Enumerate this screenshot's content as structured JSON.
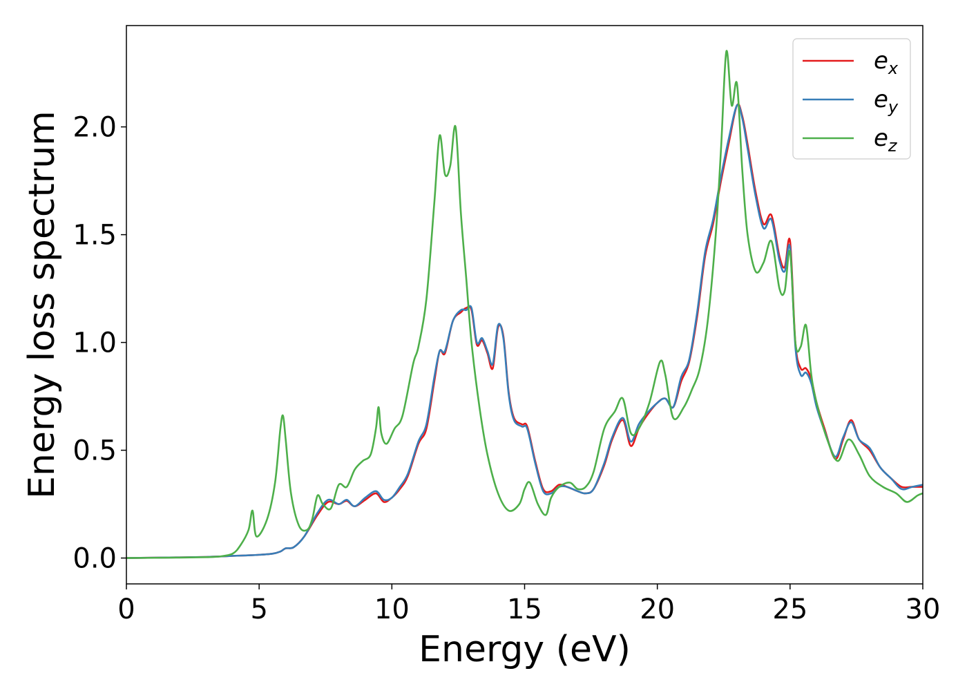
{
  "chart_data": {
    "type": "line",
    "xlabel": "Energy (eV)",
    "ylabel": "Energy loss spectrum",
    "xlim": [
      0,
      30
    ],
    "ylim": [
      -0.12,
      2.47
    ],
    "xticks": [
      "0",
      "5",
      "10",
      "15",
      "20",
      "25",
      "30"
    ],
    "yticks": [
      "0.0",
      "0.5",
      "1.0",
      "1.5",
      "2.0"
    ],
    "grid": false,
    "legend_position": "top-right",
    "series": [
      {
        "name": "e",
        "subscript": "x",
        "color": "#e41a1c",
        "x": [
          0,
          2,
          3,
          3.5,
          4,
          4.5,
          5,
          5.5,
          5.8,
          6,
          6.3,
          6.7,
          7.2,
          7.6,
          8,
          8.3,
          8.6,
          9,
          9.4,
          9.7,
          10,
          10.3,
          10.6,
          11,
          11.3,
          11.6,
          11.8,
          12,
          12.3,
          12.6,
          12.8,
          13,
          13.2,
          13.4,
          13.6,
          13.8,
          14,
          14.2,
          14.4,
          14.6,
          14.9,
          15.1,
          15.4,
          15.7,
          16,
          16.3,
          16.6,
          17,
          17.3,
          17.6,
          18,
          18.3,
          18.7,
          19,
          19.3,
          19.6,
          20,
          20.3,
          20.6,
          20.9,
          21.2,
          21.5,
          21.8,
          22.1,
          22.4,
          22.7,
          23,
          23.2,
          23.4,
          23.7,
          24,
          24.3,
          24.6,
          24.8,
          25,
          25.2,
          25.4,
          25.6,
          25.8,
          26,
          26.3,
          26.7,
          27,
          27.3,
          27.6,
          28,
          28.4,
          28.8,
          29.2,
          29.6,
          30
        ],
        "y": [
          0,
          0.003,
          0.005,
          0.007,
          0.01,
          0.012,
          0.015,
          0.02,
          0.03,
          0.045,
          0.05,
          0.1,
          0.2,
          0.26,
          0.25,
          0.265,
          0.24,
          0.27,
          0.3,
          0.26,
          0.28,
          0.32,
          0.38,
          0.53,
          0.6,
          0.82,
          0.96,
          0.95,
          1.1,
          1.14,
          1.16,
          1.15,
          0.99,
          1.01,
          0.95,
          0.88,
          1.07,
          1.03,
          0.77,
          0.65,
          0.62,
          0.61,
          0.45,
          0.32,
          0.31,
          0.34,
          0.33,
          0.31,
          0.3,
          0.32,
          0.43,
          0.55,
          0.64,
          0.52,
          0.6,
          0.66,
          0.72,
          0.74,
          0.7,
          0.82,
          0.91,
          1.12,
          1.4,
          1.55,
          1.75,
          1.93,
          2.1,
          2.05,
          1.92,
          1.7,
          1.55,
          1.59,
          1.4,
          1.35,
          1.47,
          1.0,
          0.88,
          0.88,
          0.83,
          0.72,
          0.6,
          0.46,
          0.55,
          0.64,
          0.55,
          0.5,
          0.42,
          0.37,
          0.33,
          0.33,
          0.33
        ]
      },
      {
        "name": "e",
        "subscript": "y",
        "color": "#377eb8",
        "x": [
          0,
          2,
          3,
          3.5,
          4,
          4.5,
          5,
          5.5,
          5.8,
          6,
          6.3,
          6.7,
          7.2,
          7.6,
          8,
          8.3,
          8.6,
          9,
          9.4,
          9.7,
          10,
          10.3,
          10.6,
          11,
          11.3,
          11.6,
          11.8,
          12,
          12.3,
          12.6,
          12.8,
          13,
          13.2,
          13.4,
          13.6,
          13.8,
          14,
          14.2,
          14.4,
          14.6,
          14.9,
          15.1,
          15.4,
          15.7,
          16,
          16.3,
          16.6,
          17,
          17.3,
          17.6,
          18,
          18.3,
          18.7,
          19,
          19.3,
          19.6,
          20,
          20.3,
          20.6,
          20.9,
          21.2,
          21.5,
          21.8,
          22.1,
          22.4,
          22.7,
          23,
          23.2,
          23.4,
          23.7,
          24,
          24.3,
          24.6,
          24.8,
          25,
          25.2,
          25.4,
          25.6,
          25.8,
          26,
          26.3,
          26.7,
          27,
          27.3,
          27.6,
          28,
          28.4,
          28.8,
          29.2,
          29.6,
          30
        ],
        "y": [
          0,
          0.003,
          0.005,
          0.007,
          0.01,
          0.012,
          0.015,
          0.02,
          0.03,
          0.045,
          0.05,
          0.1,
          0.21,
          0.27,
          0.25,
          0.27,
          0.24,
          0.28,
          0.31,
          0.27,
          0.28,
          0.33,
          0.39,
          0.54,
          0.62,
          0.84,
          0.96,
          0.96,
          1.1,
          1.15,
          1.15,
          1.16,
          1.0,
          1.02,
          0.96,
          0.9,
          1.08,
          1.02,
          0.76,
          0.64,
          0.61,
          0.6,
          0.44,
          0.31,
          0.3,
          0.33,
          0.33,
          0.31,
          0.3,
          0.32,
          0.44,
          0.56,
          0.65,
          0.54,
          0.62,
          0.67,
          0.72,
          0.74,
          0.7,
          0.84,
          0.92,
          1.14,
          1.42,
          1.57,
          1.77,
          1.95,
          2.1,
          2.04,
          1.9,
          1.68,
          1.53,
          1.57,
          1.38,
          1.33,
          1.44,
          0.98,
          0.85,
          0.86,
          0.81,
          0.7,
          0.59,
          0.47,
          0.56,
          0.63,
          0.55,
          0.51,
          0.42,
          0.37,
          0.32,
          0.33,
          0.34
        ]
      },
      {
        "name": "e",
        "subscript": "z",
        "color": "#4daf4a",
        "x": [
          0,
          2,
          3,
          3.5,
          4,
          4.3,
          4.6,
          4.75,
          4.9,
          5.3,
          5.6,
          5.8,
          5.9,
          6.0,
          6.2,
          6.5,
          6.8,
          7.0,
          7.2,
          7.4,
          7.7,
          8.0,
          8.3,
          8.6,
          8.9,
          9.2,
          9.4,
          9.5,
          9.6,
          9.8,
          10.1,
          10.4,
          10.8,
          11.0,
          11.3,
          11.6,
          11.8,
          12.0,
          12.2,
          12.4,
          12.6,
          12.8,
          13.0,
          13.3,
          13.6,
          14.0,
          14.4,
          14.8,
          15.0,
          15.2,
          15.5,
          15.8,
          16.0,
          16.3,
          16.7,
          17.0,
          17.3,
          17.6,
          18.0,
          18.4,
          18.7,
          19.0,
          19.3,
          19.7,
          20.1,
          20.3,
          20.6,
          21.0,
          21.3,
          21.6,
          21.9,
          22.2,
          22.4,
          22.6,
          22.8,
          23.0,
          23.2,
          23.4,
          23.7,
          24.0,
          24.3,
          24.6,
          24.8,
          25.0,
          25.2,
          25.4,
          25.6,
          25.8,
          26.0,
          26.4,
          26.8,
          27.2,
          27.6,
          28.0,
          28.5,
          29.0,
          29.4,
          29.8,
          30
        ],
        "y": [
          0,
          0.002,
          0.004,
          0.007,
          0.02,
          0.06,
          0.13,
          0.22,
          0.1,
          0.18,
          0.35,
          0.6,
          0.66,
          0.55,
          0.3,
          0.15,
          0.13,
          0.18,
          0.29,
          0.25,
          0.23,
          0.34,
          0.33,
          0.41,
          0.45,
          0.48,
          0.6,
          0.7,
          0.58,
          0.53,
          0.6,
          0.66,
          0.9,
          0.98,
          1.2,
          1.65,
          1.96,
          1.78,
          1.82,
          2.0,
          1.6,
          1.3,
          1.0,
          0.7,
          0.48,
          0.3,
          0.22,
          0.25,
          0.32,
          0.35,
          0.25,
          0.2,
          0.28,
          0.33,
          0.35,
          0.32,
          0.33,
          0.4,
          0.6,
          0.68,
          0.74,
          0.58,
          0.6,
          0.72,
          0.91,
          0.85,
          0.65,
          0.7,
          0.78,
          0.88,
          1.1,
          1.5,
          1.9,
          2.35,
          2.1,
          2.2,
          1.8,
          1.5,
          1.33,
          1.37,
          1.47,
          1.25,
          1.24,
          1.42,
          1.0,
          0.98,
          1.08,
          0.85,
          0.72,
          0.55,
          0.45,
          0.55,
          0.48,
          0.38,
          0.33,
          0.3,
          0.26,
          0.29,
          0.3
        ]
      }
    ]
  }
}
